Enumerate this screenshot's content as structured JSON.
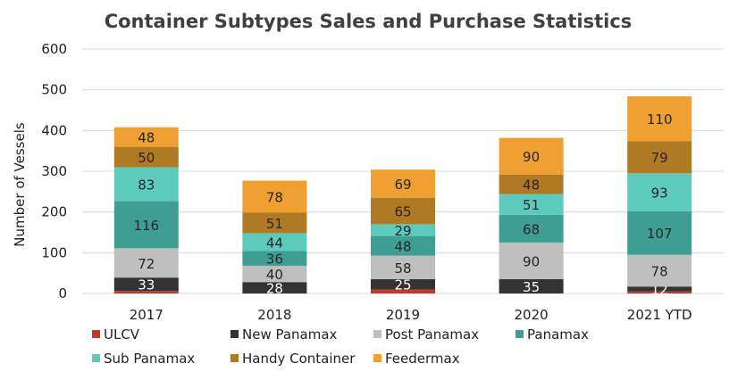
{
  "chart_data": {
    "type": "bar",
    "stacked": true,
    "title": "Container Subtypes Sales and Purchase Statistics",
    "xlabel": "",
    "ylabel": "Number of Vessels",
    "ylim": [
      0,
      600
    ],
    "yticks": [
      0,
      100,
      200,
      300,
      400,
      500,
      600
    ],
    "grid": true,
    "legend_position": "bottom",
    "categories": [
      "2017",
      "2018",
      "2019",
      "2020",
      "2021 YTD"
    ],
    "series": [
      {
        "name": "ULCV",
        "color": "#c0392b",
        "values": [
          6,
          0,
          10,
          0,
          5
        ],
        "labels": [
          "",
          "",
          "",
          "",
          ""
        ]
      },
      {
        "name": "New Panamax",
        "color": "#333333",
        "values": [
          33,
          28,
          25,
          35,
          12
        ],
        "labels": [
          "33",
          "28",
          "25",
          "35",
          "12"
        ]
      },
      {
        "name": "Post Panamax",
        "color": "#bfbfbf",
        "values": [
          72,
          40,
          58,
          90,
          78
        ],
        "labels": [
          "72",
          "40",
          "58",
          "90",
          "78"
        ]
      },
      {
        "name": "Panamax",
        "color": "#3f9e93",
        "values": [
          116,
          36,
          48,
          68,
          107
        ],
        "labels": [
          "116",
          "36",
          "48",
          "68",
          "107"
        ]
      },
      {
        "name": "Sub Panamax",
        "color": "#5ccbbd",
        "values": [
          83,
          44,
          29,
          51,
          93
        ],
        "labels": [
          "83",
          "44",
          "29",
          "51",
          "93"
        ]
      },
      {
        "name": "Handy Container",
        "color": "#b07a24",
        "values": [
          50,
          51,
          65,
          48,
          79
        ],
        "labels": [
          "50",
          "51",
          "65",
          "48",
          "79"
        ]
      },
      {
        "name": "Feedermax",
        "color": "#f0a030",
        "values": [
          48,
          78,
          69,
          90,
          110
        ],
        "labels": [
          "48",
          "78",
          "69",
          "90",
          "110"
        ]
      }
    ]
  }
}
